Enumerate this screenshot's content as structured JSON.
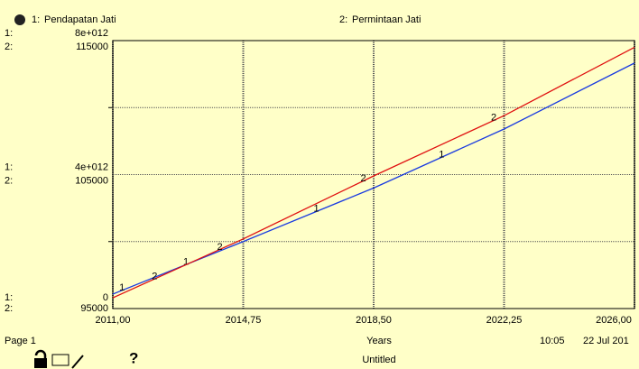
{
  "chart_data": {
    "type": "line",
    "x_label": "Years",
    "xlim": [
      2011,
      2026
    ],
    "xticks": [
      {
        "value": 2011,
        "label": "2011,00"
      },
      {
        "value": 2014.75,
        "label": "2014,75"
      },
      {
        "value": 2018.5,
        "label": "2018,50"
      },
      {
        "value": 2022.25,
        "label": "2022,25"
      },
      {
        "value": 2026,
        "label": "2026,00"
      }
    ],
    "ylim": [
      0,
      8000000000000
    ],
    "yticks": [
      0,
      {
        "value": 4000000000000,
        "label": "4e+012"
      },
      {
        "value": 8000000000000,
        "label": "8e+012"
      }
    ],
    "y2lim": [
      95000,
      115000
    ],
    "y2ticks": [
      95000,
      105000,
      115000
    ],
    "grid": true,
    "x": [
      2011,
      2014.75,
      2018.5,
      2022.25,
      2026
    ],
    "series": [
      {
        "id": "1",
        "label": "1:",
        "name": "Pendapatan Jati",
        "color": "#1a3be0",
        "axis": "y",
        "values": [
          430000000000,
          2000000000000,
          3600000000000,
          5360000000000,
          7330000000000
        ]
      },
      {
        "id": "2",
        "label": "2:",
        "name": "Permintaan Jati",
        "color": "#e01010",
        "axis": "y2",
        "values": [
          95800,
          100200,
          104900,
          109400,
          114500
        ]
      }
    ]
  },
  "footer": {
    "page": "Page 1",
    "time": "10:05",
    "date": "22 Jul 201",
    "document": "Untitled",
    "help_icon": "?"
  }
}
